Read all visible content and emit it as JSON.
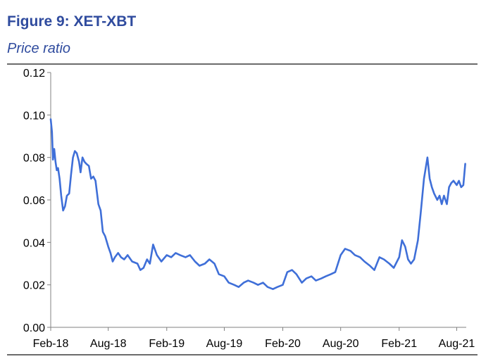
{
  "header": {
    "title": "Figure 9: XET-XBT",
    "subtitle": "Price ratio"
  },
  "chart_data": {
    "type": "line",
    "title": "Figure 9: XET-XBT",
    "subtitle": "Price ratio",
    "xlabel": "",
    "ylabel": "",
    "x_tick_labels": [
      "Feb-18",
      "Aug-18",
      "Feb-19",
      "Aug-19",
      "Feb-20",
      "Aug-20",
      "Feb-21",
      "Aug-21"
    ],
    "y_tick_labels": [
      "0.00",
      "0.02",
      "0.04",
      "0.06",
      "0.08",
      "0.10",
      "0.12"
    ],
    "ylim": [
      0,
      0.12
    ],
    "xlim": [
      "2018-02-01",
      "2021-08-31"
    ],
    "grid": false,
    "legend": "none",
    "line_color": "#3f6fd8",
    "series": [
      {
        "x": [
          "2018-02-01",
          "2018-02-05",
          "2018-02-08",
          "2018-02-12",
          "2018-02-16",
          "2018-02-20",
          "2018-02-24",
          "2018-03-01",
          "2018-03-06",
          "2018-03-12",
          "2018-03-18",
          "2018-03-24",
          "2018-03-31",
          "2018-04-06",
          "2018-04-12",
          "2018-04-18",
          "2018-04-24",
          "2018-05-01",
          "2018-05-06",
          "2018-05-12",
          "2018-05-18",
          "2018-05-24",
          "2018-06-01",
          "2018-06-08",
          "2018-06-15",
          "2018-06-22",
          "2018-07-01",
          "2018-07-08",
          "2018-07-15",
          "2018-07-22",
          "2018-08-01",
          "2018-08-08",
          "2018-08-15",
          "2018-08-22",
          "2018-09-01",
          "2018-09-10",
          "2018-09-20",
          "2018-10-01",
          "2018-10-15",
          "2018-11-01",
          "2018-11-10",
          "2018-11-20",
          "2018-12-01",
          "2018-12-10",
          "2018-12-20",
          "2019-01-01",
          "2019-01-15",
          "2019-02-01",
          "2019-02-15",
          "2019-03-01",
          "2019-03-15",
          "2019-04-01",
          "2019-04-15",
          "2019-05-01",
          "2019-05-15",
          "2019-06-01",
          "2019-06-15",
          "2019-07-01",
          "2019-07-15",
          "2019-08-01",
          "2019-08-15",
          "2019-09-01",
          "2019-09-15",
          "2019-10-01",
          "2019-10-15",
          "2019-11-01",
          "2019-11-15",
          "2019-12-01",
          "2019-12-15",
          "2020-01-01",
          "2020-01-15",
          "2020-02-01",
          "2020-02-15",
          "2020-03-01",
          "2020-03-15",
          "2020-04-01",
          "2020-04-15",
          "2020-05-01",
          "2020-05-15",
          "2020-06-01",
          "2020-06-15",
          "2020-07-01",
          "2020-07-15",
          "2020-08-01",
          "2020-08-15",
          "2020-09-01",
          "2020-09-15",
          "2020-10-01",
          "2020-10-15",
          "2020-11-01",
          "2020-11-15",
          "2020-12-01",
          "2020-12-15",
          "2021-01-01",
          "2021-01-15",
          "2021-02-01",
          "2021-02-10",
          "2021-02-20",
          "2021-03-01",
          "2021-03-10",
          "2021-03-20",
          "2021-04-01",
          "2021-04-10",
          "2021-04-20",
          "2021-05-01",
          "2021-05-08",
          "2021-05-15",
          "2021-05-22",
          "2021-06-01",
          "2021-06-08",
          "2021-06-15",
          "2021-06-22",
          "2021-07-01",
          "2021-07-08",
          "2021-07-15",
          "2021-07-22",
          "2021-08-01",
          "2021-08-08",
          "2021-08-15",
          "2021-08-22",
          "2021-08-28"
        ],
        "values": [
          0.098,
          0.092,
          0.079,
          0.084,
          0.078,
          0.074,
          0.075,
          0.07,
          0.062,
          0.055,
          0.057,
          0.062,
          0.063,
          0.072,
          0.08,
          0.083,
          0.082,
          0.078,
          0.073,
          0.08,
          0.078,
          0.077,
          0.076,
          0.07,
          0.071,
          0.069,
          0.058,
          0.055,
          0.045,
          0.043,
          0.038,
          0.035,
          0.031,
          0.033,
          0.035,
          0.033,
          0.032,
          0.034,
          0.031,
          0.03,
          0.027,
          0.028,
          0.032,
          0.03,
          0.039,
          0.034,
          0.031,
          0.034,
          0.033,
          0.035,
          0.034,
          0.033,
          0.034,
          0.031,
          0.029,
          0.03,
          0.032,
          0.03,
          0.025,
          0.024,
          0.021,
          0.02,
          0.019,
          0.021,
          0.022,
          0.021,
          0.02,
          0.021,
          0.019,
          0.018,
          0.019,
          0.02,
          0.026,
          0.027,
          0.025,
          0.021,
          0.023,
          0.024,
          0.022,
          0.023,
          0.024,
          0.025,
          0.026,
          0.034,
          0.037,
          0.036,
          0.034,
          0.033,
          0.031,
          0.029,
          0.027,
          0.033,
          0.032,
          0.03,
          0.028,
          0.033,
          0.041,
          0.038,
          0.032,
          0.03,
          0.032,
          0.041,
          0.054,
          0.07,
          0.08,
          0.07,
          0.066,
          0.063,
          0.06,
          0.062,
          0.058,
          0.062,
          0.058,
          0.066,
          0.068,
          0.069,
          0.067,
          0.069,
          0.066,
          0.067,
          0.077
        ]
      }
    ]
  }
}
